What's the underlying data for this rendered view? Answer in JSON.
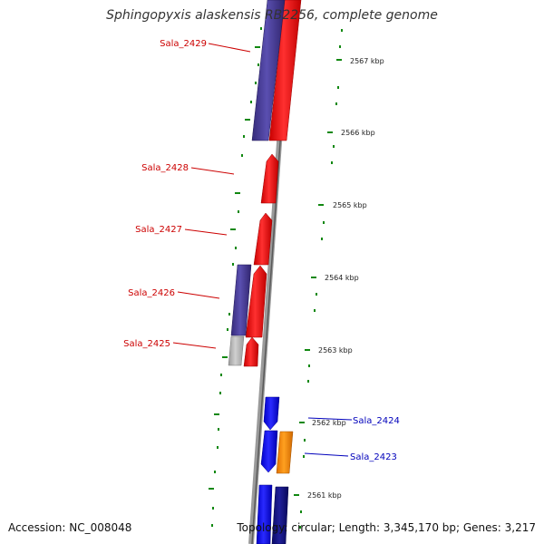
{
  "map": {
    "title": "Sphingopyxis alaskensis RB2256, complete genome",
    "accession": "Accession: NC_008048",
    "summary": "Topology: circular; Length: 3,345,170 bp; Genes: 3,217"
  },
  "ruler": [
    {
      "label": "2567 kbp"
    },
    {
      "label": "2566 kbp"
    },
    {
      "label": "2565 kbp"
    },
    {
      "label": "2564 kbp"
    },
    {
      "label": "2563 kbp"
    },
    {
      "label": "2562 kbp"
    },
    {
      "label": "2561 kbp"
    }
  ],
  "genes": [
    {
      "label": "Sala_2429",
      "color": "#cc0000"
    },
    {
      "label": "Sala_2428",
      "color": "#cc0000"
    },
    {
      "label": "Sala_2427",
      "color": "#cc0000"
    },
    {
      "label": "Sala_2426",
      "color": "#cc0000"
    },
    {
      "label": "Sala_2425",
      "color": "#cc0000"
    },
    {
      "label": "Sala_2424",
      "color": "#0000bb"
    },
    {
      "label": "Sala_2423",
      "color": "#0000bb"
    }
  ],
  "colors": {
    "backbone": "#888888",
    "ticks": "#118811",
    "forward_cds": "#ff0000",
    "reverse_cds": "#4a3d9a",
    "blue_cds": "#0000ff",
    "navy_cds": "#111188",
    "orange_cds": "#ff8c00",
    "grey_cds": "#b0b0b0"
  }
}
